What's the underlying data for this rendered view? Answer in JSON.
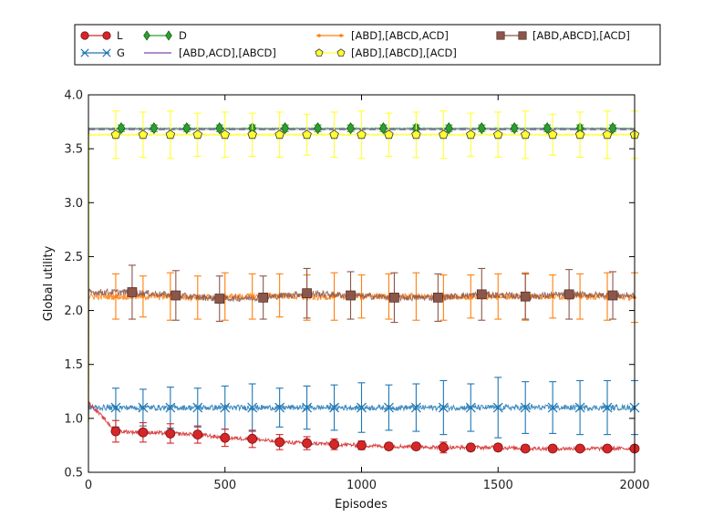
{
  "chart_data": {
    "type": "line",
    "title": "",
    "xlabel": "Episodes",
    "ylabel": "Global utility",
    "xlim": [
      0,
      2000
    ],
    "ylim": [
      0.5,
      4.0
    ],
    "xticks": [
      0,
      500,
      1000,
      1500,
      2000
    ],
    "yticks": [
      0.5,
      1.0,
      1.5,
      2.0,
      2.5,
      3.0,
      3.5,
      4.0
    ],
    "xtick_labels": [
      "0",
      "500",
      "1000",
      "1500",
      "2000"
    ],
    "ytick_labels": [
      "0.5",
      "1.0",
      "1.5",
      "2.0",
      "2.5",
      "3.0",
      "3.5",
      "4.0"
    ],
    "grid": false,
    "legend_position": "top",
    "series": [
      {
        "name": "L",
        "color": "#d62728",
        "marker": "circle",
        "start": 1.15,
        "x": [
          100,
          200,
          300,
          400,
          500,
          600,
          700,
          800,
          900,
          1000,
          1100,
          1200,
          1300,
          1400,
          1500,
          1600,
          1700,
          1800,
          1900,
          2000
        ],
        "y": [
          0.88,
          0.87,
          0.86,
          0.85,
          0.82,
          0.81,
          0.78,
          0.77,
          0.76,
          0.75,
          0.74,
          0.74,
          0.73,
          0.73,
          0.73,
          0.72,
          0.72,
          0.72,
          0.72,
          0.72
        ],
        "error": [
          0.1,
          0.09,
          0.09,
          0.08,
          0.08,
          0.08,
          0.07,
          0.06,
          0.05,
          0.04,
          0.03,
          0.03,
          0.05,
          0.03,
          0.03,
          0.03,
          0.02,
          0.02,
          0.02,
          0.02
        ]
      },
      {
        "name": "G",
        "color": "#1f77b4",
        "marker": "x",
        "x": [
          100,
          200,
          300,
          400,
          500,
          600,
          700,
          800,
          900,
          1000,
          1100,
          1200,
          1300,
          1400,
          1500,
          1600,
          1700,
          1800,
          1900,
          2000
        ],
        "y": [
          1.1,
          1.1,
          1.1,
          1.1,
          1.1,
          1.1,
          1.1,
          1.1,
          1.1,
          1.1,
          1.1,
          1.1,
          1.1,
          1.1,
          1.1,
          1.1,
          1.1,
          1.1,
          1.1,
          1.1
        ],
        "error": [
          0.18,
          0.17,
          0.19,
          0.18,
          0.2,
          0.22,
          0.18,
          0.2,
          0.21,
          0.23,
          0.21,
          0.22,
          0.25,
          0.22,
          0.28,
          0.24,
          0.24,
          0.25,
          0.25,
          0.25
        ]
      },
      {
        "name": "D",
        "color": "#2ca02c",
        "marker": "diamond",
        "x": [
          120,
          240,
          360,
          480,
          600,
          720,
          840,
          960,
          1080,
          1200,
          1320,
          1440,
          1560,
          1680,
          1800,
          1920
        ],
        "y": [
          3.69,
          3.69,
          3.69,
          3.69,
          3.69,
          3.69,
          3.69,
          3.69,
          3.69,
          3.69,
          3.69,
          3.69,
          3.69,
          3.69,
          3.69,
          3.69
        ],
        "error": [
          0.03,
          0.03,
          0.03,
          0.03,
          0.03,
          0.03,
          0.03,
          0.03,
          0.03,
          0.03,
          0.03,
          0.03,
          0.03,
          0.03,
          0.03,
          0.03
        ]
      },
      {
        "name": "[ABD,ACD],[ABCD]",
        "color": "#9467bd",
        "marker": "none",
        "x": [
          0,
          2000
        ],
        "y": [
          3.68,
          3.68
        ],
        "error": []
      },
      {
        "name": "[ABD],[ABCD,ACD]",
        "color": "#ff7f0e",
        "marker": "dot",
        "x": [
          100,
          200,
          300,
          400,
          500,
          600,
          700,
          800,
          900,
          1000,
          1100,
          1200,
          1300,
          1400,
          1500,
          1600,
          1700,
          1800,
          1900,
          2000
        ],
        "y": [
          2.13,
          2.13,
          2.13,
          2.12,
          2.13,
          2.13,
          2.14,
          2.12,
          2.13,
          2.13,
          2.13,
          2.13,
          2.12,
          2.13,
          2.13,
          2.13,
          2.13,
          2.13,
          2.13,
          2.12
        ],
        "error": [
          0.21,
          0.19,
          0.22,
          0.2,
          0.22,
          0.21,
          0.2,
          0.21,
          0.22,
          0.2,
          0.21,
          0.22,
          0.21,
          0.2,
          0.21,
          0.22,
          0.2,
          0.21,
          0.22,
          0.23
        ]
      },
      {
        "name": "[ABD],[ABCD],[ACD]",
        "color": "#ffff33",
        "marker": "pentagon",
        "x": [
          100,
          200,
          300,
          400,
          500,
          600,
          700,
          800,
          900,
          1000,
          1100,
          1200,
          1300,
          1400,
          1500,
          1600,
          1700,
          1800,
          1900,
          2000
        ],
        "y": [
          3.63,
          3.63,
          3.63,
          3.63,
          3.63,
          3.63,
          3.63,
          3.63,
          3.63,
          3.63,
          3.63,
          3.63,
          3.63,
          3.63,
          3.63,
          3.63,
          3.63,
          3.63,
          3.63,
          3.63
        ],
        "error": [
          0.22,
          0.21,
          0.22,
          0.2,
          0.21,
          0.2,
          0.21,
          0.19,
          0.21,
          0.22,
          0.2,
          0.21,
          0.22,
          0.2,
          0.21,
          0.22,
          0.19,
          0.21,
          0.22,
          0.22
        ]
      },
      {
        "name": "[ABD,ABCD],[ACD]",
        "color": "#8c564b",
        "marker": "square",
        "x": [
          160,
          320,
          480,
          640,
          800,
          960,
          1120,
          1280,
          1440,
          1600,
          1760,
          1920
        ],
        "y": [
          2.17,
          2.14,
          2.11,
          2.12,
          2.16,
          2.14,
          2.12,
          2.12,
          2.15,
          2.13,
          2.15,
          2.14
        ],
        "error": [
          0.25,
          0.23,
          0.21,
          0.2,
          0.23,
          0.22,
          0.23,
          0.22,
          0.24,
          0.21,
          0.23,
          0.22
        ]
      }
    ]
  }
}
